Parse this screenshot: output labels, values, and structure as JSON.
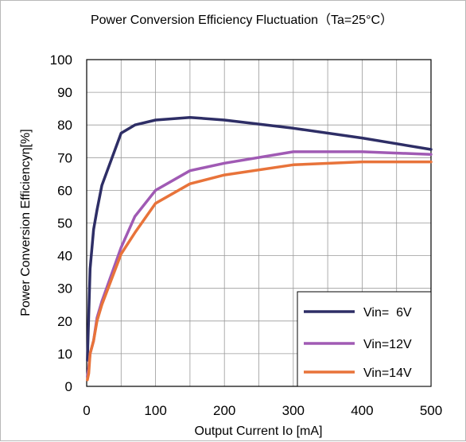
{
  "chart_data": {
    "type": "line",
    "title": "Power Conversion Efficiency Fluctuation（Ta=25°C）",
    "xlabel": "Output Current Io [mA]",
    "ylabel": "Power Conversion Efficiencyη[%]",
    "xlim": [
      0,
      500
    ],
    "ylim": [
      0,
      100
    ],
    "xticks": [
      "0",
      "100",
      "200",
      "300",
      "400",
      "500"
    ],
    "yticks": [
      "0",
      "10",
      "20",
      "30",
      "40",
      "50",
      "60",
      "70",
      "80",
      "90",
      "100"
    ],
    "grid": true,
    "legend_position": "bottom-right",
    "series": [
      {
        "name": "Vin=  6V",
        "color": "#2e2e66",
        "points": [
          [
            1,
            8
          ],
          [
            3,
            22
          ],
          [
            5,
            36
          ],
          [
            10,
            48
          ],
          [
            15,
            54
          ],
          [
            22,
            61.5
          ],
          [
            50,
            77.5
          ],
          [
            70,
            80
          ],
          [
            100,
            81.5
          ],
          [
            150,
            82.3
          ],
          [
            200,
            81.5
          ],
          [
            300,
            79
          ],
          [
            400,
            76
          ],
          [
            500,
            72.5
          ]
        ]
      },
      {
        "name": "Vin=12V",
        "color": "#a05ab4",
        "points": [
          [
            1,
            3
          ],
          [
            3,
            6
          ],
          [
            5,
            10
          ],
          [
            10,
            14
          ],
          [
            15,
            21
          ],
          [
            22,
            26
          ],
          [
            50,
            42.5
          ],
          [
            70,
            52
          ],
          [
            100,
            60
          ],
          [
            150,
            66
          ],
          [
            200,
            68.3
          ],
          [
            300,
            71.8
          ],
          [
            400,
            71.8
          ],
          [
            500,
            71
          ]
        ]
      },
      {
        "name": "Vin=14V",
        "color": "#e8733a",
        "points": [
          [
            1,
            2
          ],
          [
            3,
            4
          ],
          [
            5,
            10
          ],
          [
            10,
            14
          ],
          [
            15,
            20
          ],
          [
            22,
            25
          ],
          [
            50,
            40.5
          ],
          [
            70,
            47
          ],
          [
            100,
            56
          ],
          [
            150,
            62
          ],
          [
            200,
            64.7
          ],
          [
            300,
            67.8
          ],
          [
            400,
            68.7
          ],
          [
            500,
            68.7
          ]
        ]
      }
    ]
  }
}
